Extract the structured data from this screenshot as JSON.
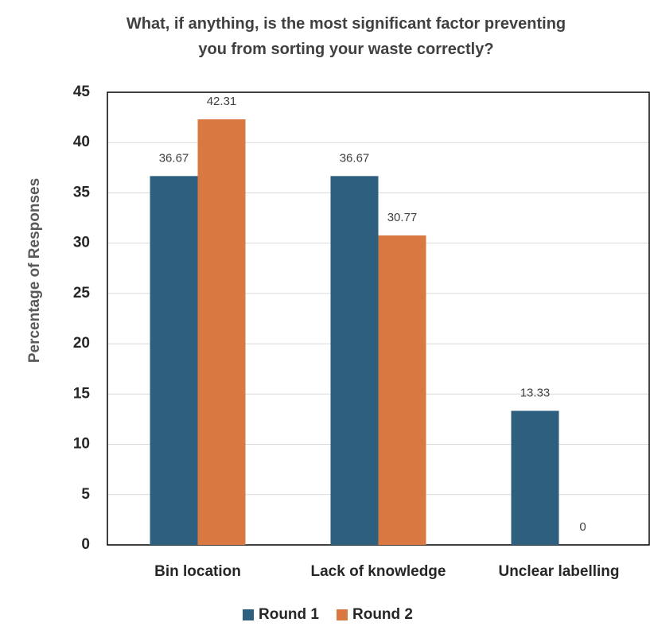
{
  "chart_data": {
    "type": "bar",
    "title": "What, if anything, is the most significant factor preventing you from sorting your waste correctly?",
    "y_label": "Percentage of Responses",
    "categories": [
      "Bin location",
      "Lack of knowledge",
      "Unclear labelling"
    ],
    "series": [
      {
        "name": "Round 1",
        "color": "#2e5f7e",
        "values": [
          36.67,
          36.67,
          13.33
        ]
      },
      {
        "name": "Round 2",
        "color": "#d97941",
        "values": [
          42.31,
          30.77,
          0
        ]
      }
    ],
    "ylim": [
      0,
      45
    ],
    "yticks": [
      0,
      5,
      10,
      15,
      20,
      25,
      30,
      35,
      40,
      45
    ],
    "grid": true,
    "legend": "bottom"
  }
}
